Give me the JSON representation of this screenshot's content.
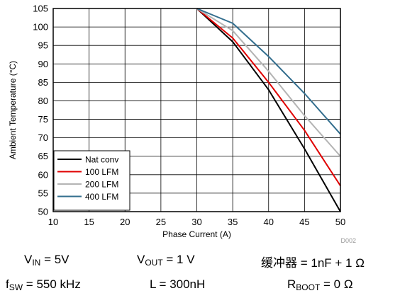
{
  "chart_data": {
    "type": "line",
    "xlabel": "Phase Current (A)",
    "ylabel": "Ambient Temperature (°C)",
    "xlim": [
      10,
      50
    ],
    "ylim": [
      50,
      105
    ],
    "x_ticks": [
      "10",
      "15",
      "20",
      "25",
      "30",
      "35",
      "40",
      "45",
      "50"
    ],
    "y_ticks": [
      "50",
      "55",
      "60",
      "65",
      "70",
      "75",
      "80",
      "85",
      "90",
      "95",
      "100",
      "105"
    ],
    "grid": true,
    "legend_position": "bottom-left",
    "series": [
      {
        "name": "Nat conv",
        "color": "#000000",
        "x": [
          30,
          35,
          40,
          45,
          50
        ],
        "y": [
          105,
          96,
          83,
          67,
          50
        ]
      },
      {
        "name": "100 LFM",
        "color": "#e00000",
        "x": [
          30,
          35,
          40,
          45,
          50
        ],
        "y": [
          105,
          97,
          85,
          72,
          57
        ]
      },
      {
        "name": "200 LFM",
        "color": "#b4b4b4",
        "x": [
          30,
          35,
          40,
          45,
          50
        ],
        "y": [
          105,
          99,
          88,
          76,
          65
        ]
      },
      {
        "name": "400 LFM",
        "color": "#336e8e",
        "x": [
          30,
          35,
          40,
          45,
          50
        ],
        "y": [
          105,
          101,
          92,
          82,
          71
        ]
      }
    ],
    "figure_id": "D002"
  },
  "conditions": {
    "vin": {
      "sym": "V",
      "sub": "IN",
      "rest": " = 5V"
    },
    "vout": {
      "sym": "V",
      "sub": "OUT",
      "rest": " = 1 V"
    },
    "snubber": {
      "label": "缓冲器",
      "rest": " = 1nF + 1 Ω"
    },
    "fsw": {
      "sym": "f",
      "sub": "SW",
      "rest": " = 550 kHz"
    },
    "inductor": {
      "text": "L = 300nH"
    },
    "rboot": {
      "sym": "R",
      "sub": "BOOT",
      "rest": " = 0 Ω"
    }
  }
}
